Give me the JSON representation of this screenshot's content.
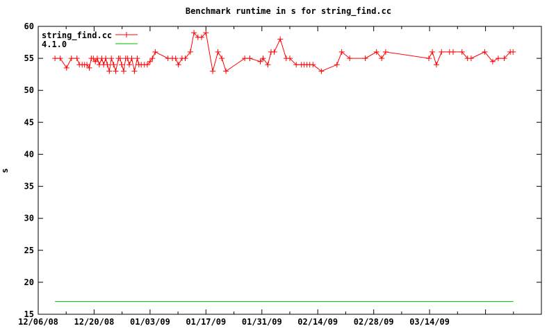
{
  "background": "#ffffff",
  "colors": {
    "axis": "#000000",
    "series_main": "#ff0000",
    "series_baseline": "#00c000"
  },
  "chart_data": {
    "type": "line",
    "title": "Benchmark runtime in s for string_find.cc",
    "xlabel": "",
    "ylabel": "s",
    "ylim": [
      15,
      60
    ],
    "y_ticks": [
      15,
      20,
      25,
      30,
      35,
      40,
      45,
      50,
      55,
      60
    ],
    "x_domain_days": [
      0,
      126
    ],
    "x_major_tick_days": [
      0,
      14,
      28,
      42,
      56,
      70,
      84,
      98,
      112
    ],
    "x_minor_tick_days": [
      7,
      21,
      35,
      49,
      63,
      77,
      91,
      105,
      119
    ],
    "x_tick_labels": [
      {
        "day": 0,
        "label": "12/06/08"
      },
      {
        "day": 14,
        "label": "12/20/08"
      },
      {
        "day": 28,
        "label": "01/03/09"
      },
      {
        "day": 42,
        "label": "01/17/09"
      },
      {
        "day": 56,
        "label": "01/31/09"
      },
      {
        "day": 70,
        "label": "02/14/09"
      },
      {
        "day": 84,
        "label": "02/28/09"
      },
      {
        "day": 98,
        "label": "03/14/09"
      }
    ],
    "grid": false,
    "legend_position": "top-left-inside",
    "series": [
      {
        "name": "string_find.cc",
        "color": "#ff0000",
        "marker": "plus",
        "points": [
          [
            4.2,
            55
          ],
          [
            5.5,
            55
          ],
          [
            7.1,
            53.5
          ],
          [
            8.3,
            55
          ],
          [
            9.7,
            55
          ],
          [
            10.3,
            54
          ],
          [
            11,
            54
          ],
          [
            11.6,
            54
          ],
          [
            12.2,
            54
          ],
          [
            12.8,
            53.5
          ],
          [
            13.3,
            55
          ],
          [
            13.8,
            55
          ],
          [
            14.3,
            54.5
          ],
          [
            14.8,
            55
          ],
          [
            15.3,
            54
          ],
          [
            15.9,
            55
          ],
          [
            16.4,
            54
          ],
          [
            16.9,
            55
          ],
          [
            17.3,
            54
          ],
          [
            17.8,
            53
          ],
          [
            18.3,
            55
          ],
          [
            18.9,
            54
          ],
          [
            19.4,
            53
          ],
          [
            20.1,
            55
          ],
          [
            20.5,
            55
          ],
          [
            20.9,
            54
          ],
          [
            21.4,
            53
          ],
          [
            21.9,
            55
          ],
          [
            22.4,
            55
          ],
          [
            22.8,
            54
          ],
          [
            23.4,
            55
          ],
          [
            24.1,
            53
          ],
          [
            24.8,
            55
          ],
          [
            25.2,
            54
          ],
          [
            25.8,
            54
          ],
          [
            26.6,
            54
          ],
          [
            27.3,
            54
          ],
          [
            28,
            54.5
          ],
          [
            28.6,
            55
          ],
          [
            29.3,
            56
          ],
          [
            32.5,
            55
          ],
          [
            33.6,
            55
          ],
          [
            34.4,
            55
          ],
          [
            35.1,
            54
          ],
          [
            36,
            55
          ],
          [
            36.8,
            55
          ],
          [
            38.1,
            56
          ],
          [
            39,
            59
          ],
          [
            40,
            58.3
          ],
          [
            40.9,
            58.3
          ],
          [
            42,
            59
          ],
          [
            43.7,
            53
          ],
          [
            45,
            56
          ],
          [
            46,
            55
          ],
          [
            47,
            53
          ],
          [
            51.7,
            55
          ],
          [
            53,
            55
          ],
          [
            55.6,
            54.5
          ],
          [
            56.3,
            55
          ],
          [
            57.5,
            54
          ],
          [
            58.3,
            56
          ],
          [
            59.1,
            56
          ],
          [
            60.6,
            58
          ],
          [
            62.1,
            55
          ],
          [
            63,
            55
          ],
          [
            64.6,
            54
          ],
          [
            65.9,
            54
          ],
          [
            66.6,
            54
          ],
          [
            67.3,
            54
          ],
          [
            68,
            54
          ],
          [
            68.8,
            54
          ],
          [
            70.9,
            53
          ],
          [
            74.8,
            54
          ],
          [
            76,
            56
          ],
          [
            78,
            55
          ],
          [
            81.9,
            55
          ],
          [
            84.7,
            56
          ],
          [
            86,
            55
          ],
          [
            87,
            56
          ],
          [
            97.8,
            55
          ],
          [
            98.7,
            56
          ],
          [
            99.7,
            54
          ],
          [
            101,
            56
          ],
          [
            103,
            56
          ],
          [
            103.9,
            56
          ],
          [
            106.1,
            56
          ],
          [
            107.5,
            55
          ],
          [
            108.4,
            55
          ],
          [
            111.8,
            56
          ],
          [
            113.8,
            54.5
          ],
          [
            115.2,
            55
          ],
          [
            116.7,
            55
          ],
          [
            118.2,
            56
          ],
          [
            118.9,
            56
          ]
        ]
      },
      {
        "name": "4.1.0",
        "color": "#00c000",
        "marker": "none",
        "points": [
          [
            4.2,
            17
          ],
          [
            119,
            17
          ]
        ]
      }
    ]
  }
}
